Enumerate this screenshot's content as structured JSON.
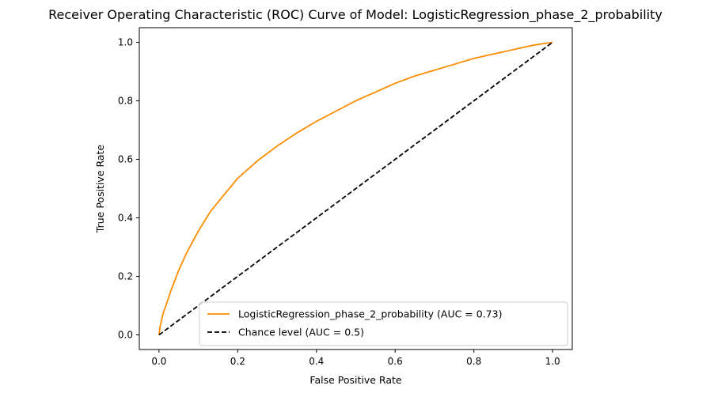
{
  "chart_data": {
    "type": "line",
    "title": "Receiver Operating Characteristic (ROC) Curve of Model: LogisticRegression_phase_2_probability",
    "xlabel": "False Positive Rate",
    "ylabel": "True Positive Rate",
    "xlim": [
      -0.05,
      1.05
    ],
    "ylim": [
      -0.05,
      1.05
    ],
    "x_ticks": [
      "0.0",
      "0.2",
      "0.4",
      "0.6",
      "0.8",
      "1.0"
    ],
    "y_ticks": [
      "0.0",
      "0.2",
      "0.4",
      "0.6",
      "0.8",
      "1.0"
    ],
    "grid": false,
    "legend_position": "lower-right",
    "series": [
      {
        "name": "LogisticRegression_phase_2_probability (AUC = 0.73)",
        "color": "#ff8c00",
        "style": "solid",
        "x": [
          0.0,
          0.003,
          0.01,
          0.02,
          0.03,
          0.05,
          0.07,
          0.1,
          0.13,
          0.16,
          0.2,
          0.25,
          0.3,
          0.35,
          0.4,
          0.45,
          0.5,
          0.55,
          0.6,
          0.65,
          0.7,
          0.75,
          0.8,
          0.85,
          0.9,
          0.95,
          1.0
        ],
        "y": [
          0.0,
          0.03,
          0.07,
          0.11,
          0.15,
          0.22,
          0.28,
          0.355,
          0.42,
          0.47,
          0.535,
          0.595,
          0.645,
          0.69,
          0.73,
          0.765,
          0.8,
          0.83,
          0.86,
          0.885,
          0.905,
          0.925,
          0.945,
          0.96,
          0.975,
          0.99,
          1.0
        ]
      },
      {
        "name": "Chance level (AUC = 0.5)",
        "color": "#000000",
        "style": "dashed",
        "x": [
          0.0,
          1.0
        ],
        "y": [
          0.0,
          1.0
        ]
      }
    ]
  }
}
